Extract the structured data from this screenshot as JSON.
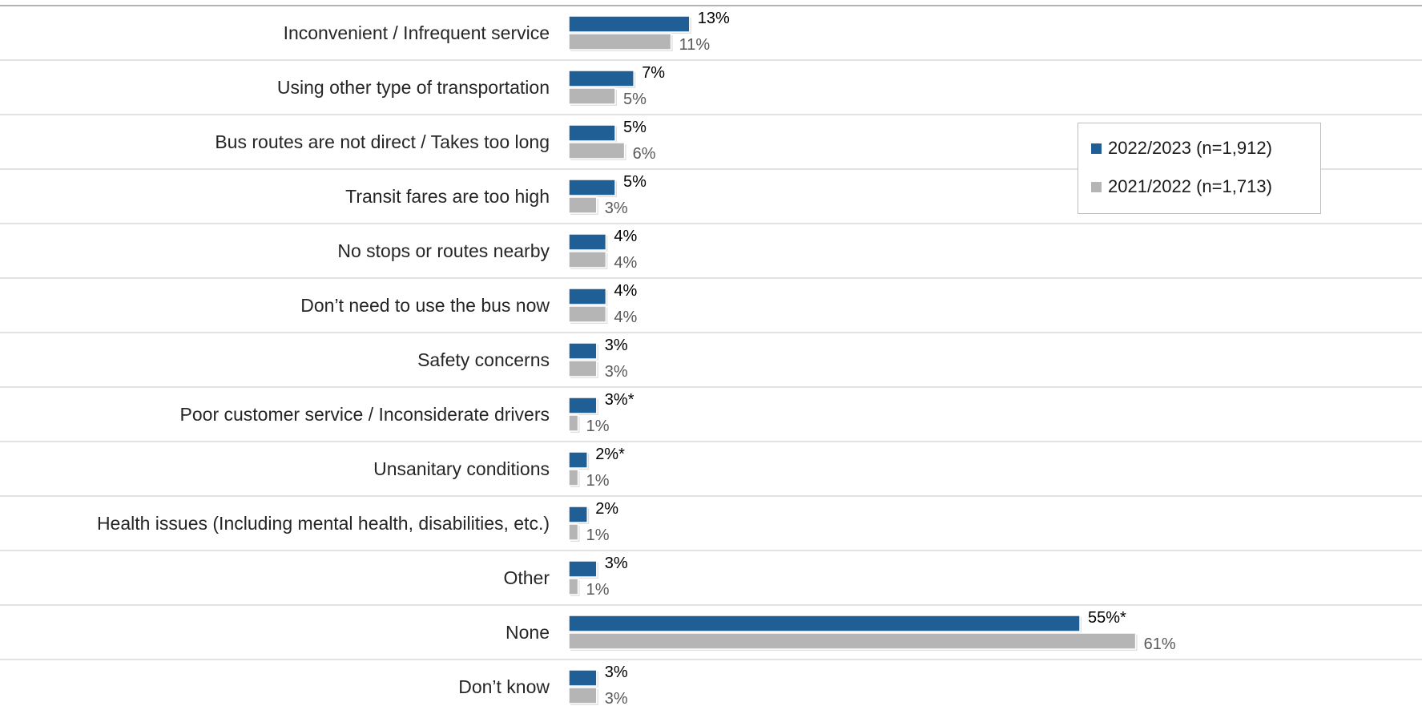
{
  "chart_data": {
    "type": "bar",
    "orientation": "horizontal",
    "categories": [
      "Inconvenient / Infrequent service",
      "Using other type of transportation",
      "Bus routes are not direct / Takes too long",
      "Transit fares are too high",
      "No stops or routes nearby",
      "Don’t need to use the bus now",
      "Safety concerns",
      "Poor customer service / Inconsiderate drivers",
      "Unsanitary conditions",
      "Health issues (Including mental health, disabilities, etc.)",
      "Other",
      "None",
      "Don’t know"
    ],
    "series": [
      {
        "name": "2022/2023 (n=1,912)",
        "color": "#1f5f96",
        "label_color": "#000000",
        "values": [
          13,
          7,
          5,
          5,
          4,
          4,
          3,
          3,
          2,
          2,
          3,
          55,
          3
        ],
        "labels": [
          "13%",
          "7%",
          "5%",
          "5%",
          "4%",
          "4%",
          "3%",
          "3%*",
          "2%*",
          "2%",
          "3%",
          "55%*",
          "3%"
        ]
      },
      {
        "name": "2021/2022 (n=1,713)",
        "color": "#b5b5b5",
        "label_color": "#595959",
        "values": [
          11,
          5,
          6,
          3,
          4,
          4,
          3,
          1,
          1,
          1,
          1,
          61,
          3
        ],
        "labels": [
          "11%",
          "5%",
          "6%",
          "3%",
          "4%",
          "4%",
          "3%",
          "1%",
          "1%",
          "1%",
          "1%",
          "61%",
          "3%"
        ]
      }
    ],
    "xlim": [
      0,
      61
    ],
    "legend_position": "top-right",
    "grid": "horizontal separators between categories"
  }
}
